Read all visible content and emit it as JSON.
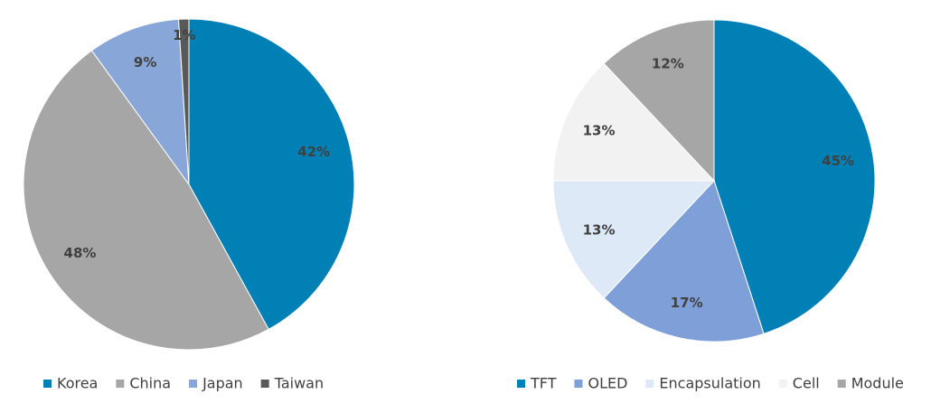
{
  "chart_data": [
    {
      "type": "pie",
      "categories": [
        "Korea",
        "China",
        "Japan",
        "Taiwan"
      ],
      "values": [
        42,
        48,
        9,
        1
      ],
      "value_labels": [
        "42%",
        "48%",
        "9%",
        "1%"
      ],
      "colors": [
        "#0080b4",
        "#a6a6a6",
        "#89a6d9",
        "#595959"
      ],
      "legend": "bottom"
    },
    {
      "type": "pie",
      "categories": [
        "TFT",
        "OLED",
        "Encapsulation",
        "Cell",
        "Module"
      ],
      "values": [
        45,
        17,
        13,
        13,
        12
      ],
      "value_labels": [
        "45%",
        "17%",
        "13%",
        "13%",
        "12%"
      ],
      "colors": [
        "#0080b4",
        "#7f9fd8",
        "#dde9f6",
        "#f2f2f2",
        "#a6a6a6"
      ],
      "legend": "bottom"
    }
  ]
}
